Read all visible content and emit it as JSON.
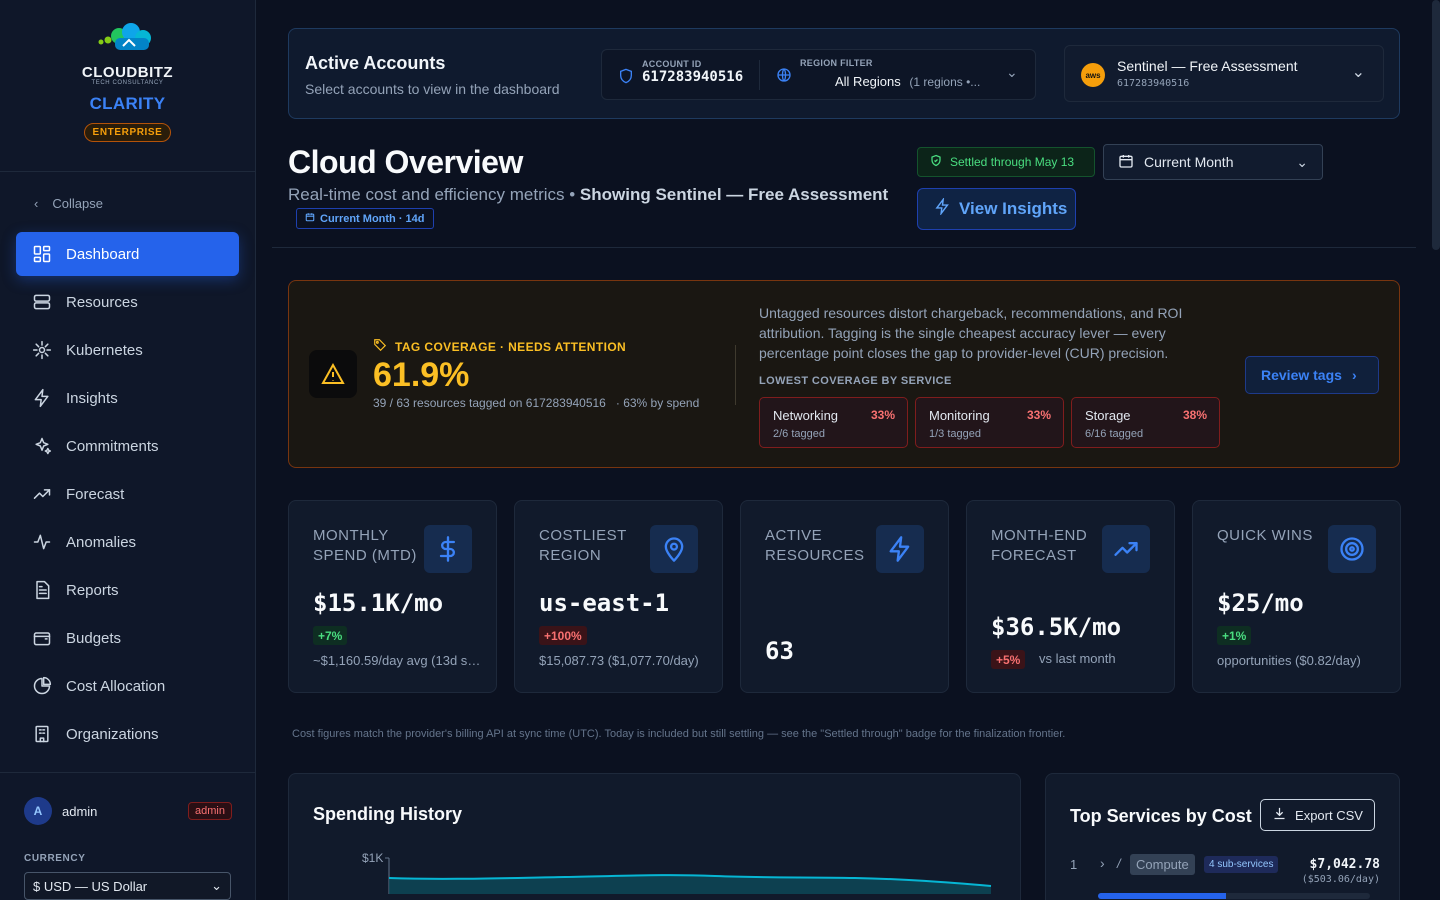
{
  "brand": {
    "name": "CLOUDBITZ",
    "tagline": "TECH CONSULTANCY",
    "product": "CLARITY",
    "tier": "ENTERPRISE"
  },
  "sidebar": {
    "collapse_label": "Collapse",
    "items": [
      {
        "label": "Dashboard",
        "icon": "dashboard-icon",
        "active": true
      },
      {
        "label": "Resources",
        "icon": "server-icon"
      },
      {
        "label": "Kubernetes",
        "icon": "kubernetes-icon"
      },
      {
        "label": "Insights",
        "icon": "bolt-icon"
      },
      {
        "label": "Commitments",
        "icon": "sparkles-icon"
      },
      {
        "label": "Forecast",
        "icon": "trend-icon"
      },
      {
        "label": "Anomalies",
        "icon": "pulse-icon"
      },
      {
        "label": "Reports",
        "icon": "report-icon"
      },
      {
        "label": "Budgets",
        "icon": "wallet-icon"
      },
      {
        "label": "Cost Allocation",
        "icon": "pie-icon"
      },
      {
        "label": "Organizations",
        "icon": "building-icon"
      }
    ],
    "user": {
      "initial": "A",
      "name": "admin",
      "role": "admin"
    },
    "currency_label": "CURRENCY",
    "currency_value": "$ USD — US Dollar"
  },
  "accounts": {
    "title": "Active Accounts",
    "subtitle": "Select accounts to view in the dashboard",
    "account_id_label": "ACCOUNT ID",
    "account_id": "617283940516",
    "region_label": "REGION FILTER",
    "region_value": "All Regions",
    "region_count": "(1 regions •...",
    "org_name": "Sentinel — Free Assessment",
    "org_id": "617283940516",
    "provider": "aws"
  },
  "header": {
    "title": "Cloud Overview",
    "subtitle_prefix": "Real-time cost and efficiency metrics • ",
    "subtitle_bold": "Showing Sentinel — Free Assessment",
    "period_tag": "Current Month · 14d",
    "settled": "Settled through May 13",
    "period_select": "Current Month",
    "insights_button": "View Insights"
  },
  "tag_coverage": {
    "heading": "TAG COVERAGE · NEEDS ATTENTION",
    "percent": "61.9%",
    "detail": "39 / 63 resources tagged on 617283940516   · 63% by spend",
    "description": "Untagged resources distort chargeback, recommendations, and ROI attribution. Tagging is the single cheapest accuracy lever — every percentage point closes the gap to provider-level (CUR) precision.",
    "lowest_label": "LOWEST COVERAGE BY SERVICE",
    "services": [
      {
        "name": "Networking",
        "pct": "33%",
        "tagged": "2/6 tagged"
      },
      {
        "name": "Monitoring",
        "pct": "33%",
        "tagged": "1/3 tagged"
      },
      {
        "name": "Storage",
        "pct": "38%",
        "tagged": "6/16 tagged"
      }
    ],
    "review_button": "Review tags"
  },
  "kpis": [
    {
      "label": "MONTHLY SPEND (MTD)",
      "value": "$15.1K/mo",
      "delta": "+7%",
      "delta_type": "good",
      "foot": "~$1,160.59/day avg (13d se...",
      "icon": "dollar-icon"
    },
    {
      "label": "COSTLIEST REGION",
      "value": "us-east-1",
      "delta": "+100%",
      "delta_type": "bad",
      "foot": "$15,087.73 ($1,077.70/day)",
      "icon": "map-pin-icon"
    },
    {
      "label": "ACTIVE RESOURCES",
      "value": "63",
      "delta": "",
      "delta_type": "",
      "foot": "",
      "icon": "bolt-icon"
    },
    {
      "label": "MONTH-END FORECAST",
      "value": "$36.5K/mo",
      "delta": "+5%",
      "delta_type": "bad",
      "foot": "vs last month",
      "icon": "trend-up-icon"
    },
    {
      "label": "QUICK WINS",
      "value": "$25/mo",
      "delta": "+1%",
      "delta_type": "good",
      "foot": "opportunities ($0.82/day)",
      "icon": "target-icon"
    }
  ],
  "disclaimer": "Cost figures match the provider's billing API at sync time (UTC). Today is included but still settling — see the \"Settled through\" badge for the finalization frontier.",
  "spending_history": {
    "title": "Spending History",
    "y_tick": "$1K"
  },
  "top_services": {
    "title": "Top Services by Cost",
    "export_button": "Export CSV",
    "rows": [
      {
        "rank": "1",
        "name": "Compute",
        "sub": "4 sub-services",
        "cost": "$7,042.78",
        "daily": "($503.06/day)"
      }
    ]
  }
}
